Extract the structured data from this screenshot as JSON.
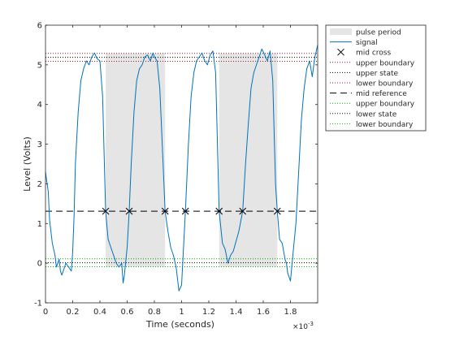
{
  "chart_data": {
    "type": "line",
    "title": "",
    "xlabel": "Time (seconds)",
    "ylabel": "Level (Volts)",
    "x_exponent_label": "×10",
    "x_exponent_power": "-3",
    "xlim": [
      0,
      0.002
    ],
    "ylim": [
      -1,
      6
    ],
    "x_ticks": [
      0,
      0.0002,
      0.0004,
      0.0006,
      0.0008,
      0.001,
      0.0012,
      0.0014,
      0.0016,
      0.0018
    ],
    "x_tick_labels": [
      "0",
      "0.2",
      "0.4",
      "0.6",
      "0.8",
      "1",
      "1.2",
      "1.4",
      "1.6",
      "1.8"
    ],
    "y_ticks": [
      -1,
      0,
      1,
      2,
      3,
      4,
      5,
      6
    ],
    "y_tick_labels": [
      "-1",
      "0",
      "1",
      "2",
      "3",
      "4",
      "5",
      "6"
    ],
    "grid": false,
    "legend_position": "outside-top-right",
    "pulse_periods": [
      {
        "x_start": 0.000442,
        "x_end": 0.000879
      },
      {
        "x_start": 0.001276,
        "x_end": 0.001703
      }
    ],
    "mid_cross_times": [
      0.000442,
      0.000615,
      0.000879,
      0.001028,
      0.001276,
      0.001449,
      0.001703
    ],
    "mid_reference": 1.31,
    "upper_state": 5.19,
    "upper_boundary_high": 5.29,
    "upper_boundary_low": 5.09,
    "lower_state": 0.01,
    "lower_boundary_high": 0.11,
    "lower_boundary_low": -0.09,
    "signal": {
      "x": [
        0,
        2e-05,
        3e-05,
        5e-05,
        7e-05,
        8e-05,
        0.0001,
        0.00011,
        0.00012,
        0.00014,
        0.00015,
        0.00017,
        0.00019,
        0.0002,
        0.00021,
        0.00022,
        0.00024,
        0.00026,
        0.00028,
        0.0003,
        0.00032,
        0.00034,
        0.00036,
        0.00038,
        0.0004,
        0.00042,
        0.000442,
        0.00046,
        0.00048,
        0.0005,
        0.00052,
        0.00054,
        0.00056,
        0.00057,
        0.00058,
        0.0006,
        0.000615,
        0.00063,
        0.00065,
        0.00067,
        0.00069,
        0.00071,
        0.00073,
        0.00075,
        0.00077,
        0.00079,
        0.0008,
        0.00082,
        0.00084,
        0.00086,
        0.000879,
        0.0009,
        0.00092,
        0.00094,
        0.00096,
        0.00097,
        0.00098,
        0.001,
        0.001028,
        0.00105,
        0.00107,
        0.00109,
        0.00111,
        0.00113,
        0.00115,
        0.00117,
        0.00119,
        0.00121,
        0.00123,
        0.00125,
        0.001276,
        0.0013,
        0.00132,
        0.00134,
        0.00136,
        0.00138,
        0.0014,
        0.00142,
        0.001449,
        0.00147,
        0.00149,
        0.00151,
        0.00153,
        0.00155,
        0.00157,
        0.00159,
        0.00161,
        0.00163,
        0.00165,
        0.00167,
        0.00169,
        0.001703,
        0.00172,
        0.00174,
        0.00176,
        0.00177,
        0.00178,
        0.0018,
        0.00182,
        0.00184,
        0.00186,
        0.00188,
        0.0019,
        0.00192,
        0.00194,
        0.00196,
        0.00198,
        0.002
      ],
      "y": [
        2.3,
        1.8,
        1.1,
        0.5,
        0.2,
        -0.1,
        0.1,
        -0.2,
        -0.3,
        -0.1,
        0.0,
        -0.1,
        -0.2,
        0.3,
        1.2,
        2.5,
        3.8,
        4.6,
        4.9,
        5.1,
        5.0,
        5.2,
        5.3,
        5.15,
        5.1,
        4.2,
        1.31,
        0.6,
        0.4,
        0.2,
        0.0,
        -0.1,
        0.0,
        -0.5,
        -0.3,
        0.4,
        1.31,
        2.5,
        3.8,
        4.6,
        4.9,
        5.0,
        5.2,
        5.25,
        5.1,
        5.3,
        5.2,
        5.1,
        4.4,
        2.8,
        1.31,
        0.8,
        0.4,
        0.2,
        -0.1,
        -0.4,
        -0.7,
        -0.55,
        1.31,
        3.0,
        4.2,
        4.8,
        5.1,
        5.2,
        5.3,
        5.1,
        5.0,
        5.25,
        5.35,
        4.8,
        1.31,
        0.5,
        0.35,
        0.0,
        0.2,
        0.3,
        0.55,
        0.8,
        1.31,
        2.5,
        3.5,
        4.4,
        4.8,
        5.0,
        5.2,
        5.4,
        5.25,
        5.1,
        5.35,
        4.6,
        2.0,
        1.31,
        0.6,
        0.5,
        0.1,
        0.0,
        -0.25,
        -0.45,
        0.3,
        1.0,
        2.3,
        3.6,
        4.4,
        4.9,
        5.1,
        4.7,
        5.2,
        5.5
      ]
    },
    "legend_entries": [
      {
        "label": "pulse period",
        "style": "patch",
        "color": "#e5e5e5"
      },
      {
        "label": "signal",
        "style": "line",
        "color": "#0072bd"
      },
      {
        "label": "mid cross",
        "style": "cross",
        "color": "#000000"
      },
      {
        "label": "upper boundary",
        "style": "dotted",
        "color": "#a2142f"
      },
      {
        "label": "upper state",
        "style": "dotted",
        "color": "#000000"
      },
      {
        "label": "lower boundary",
        "style": "dotted",
        "color": "#a2142f"
      },
      {
        "label": "mid reference",
        "style": "dashed",
        "color": "#000000"
      },
      {
        "label": "upper boundary",
        "style": "dotted",
        "color": "#00b000"
      },
      {
        "label": "lower state",
        "style": "dotted",
        "color": "#000000"
      },
      {
        "label": "lower boundary",
        "style": "dotted",
        "color": "#00b000"
      }
    ],
    "colors": {
      "signal": "#0072bd",
      "pulse_period": "#e5e5e5",
      "upper_boundary": "#a2142f",
      "lower_boundary": "#00b000",
      "state": "#000000",
      "axes": "#262626"
    }
  }
}
